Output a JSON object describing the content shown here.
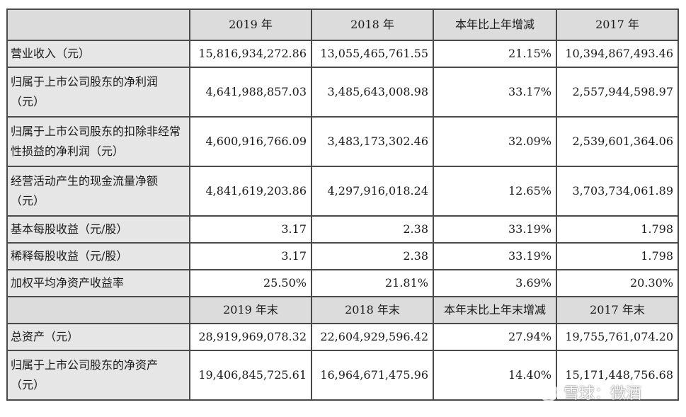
{
  "header1": [
    "2019 年",
    "2018 年",
    "本年比上年增减",
    "2017 年"
  ],
  "rows1": [
    {
      "label": "营业收入（元）",
      "values": [
        "15,816,934,272.86",
        "13,055,465,761.55",
        "21.15%",
        "10,394,867,493.46"
      ]
    },
    {
      "label": "归属于上市公司股东的净利润（元）",
      "values": [
        "4,641,988,857.03",
        "3,485,643,008.98",
        "33.17%",
        "2,557,944,598.97"
      ]
    },
    {
      "label": "归属于上市公司股东的扣除非经常性损益的净利润（元）",
      "values": [
        "4,600,916,766.09",
        "3,483,173,302.46",
        "32.09%",
        "2,539,601,364.06"
      ]
    },
    {
      "label": "经营活动产生的现金流量净额（元）",
      "values": [
        "4,841,619,203.86",
        "4,297,916,018.24",
        "12.65%",
        "3,703,734,061.89"
      ]
    },
    {
      "label": "基本每股收益（元/股）",
      "values": [
        "3.17",
        "2.38",
        "33.19%",
        "1.798"
      ]
    },
    {
      "label": "稀释每股收益（元/股）",
      "values": [
        "3.17",
        "2.38",
        "33.19%",
        "1.798"
      ]
    },
    {
      "label": "加权平均净资产收益率",
      "values": [
        "25.50%",
        "21.81%",
        "3.69%",
        "20.30%"
      ]
    }
  ],
  "header2": [
    "2019 年末",
    "2018 年末",
    "本年末比上年末增减",
    "2017 年末"
  ],
  "rows2": [
    {
      "label": "总资产（元）",
      "values": [
        "28,919,969,078.32",
        "22,604,929,596.42",
        "27.94%",
        "19,755,761,074.20"
      ]
    },
    {
      "label": "归属于上市公司股东的净资产（元）",
      "values": [
        "19,406,845,725.61",
        "16,964,671,475.96",
        "14.40%",
        "15,171,448,756.68"
      ]
    }
  ],
  "watermark": "雪球：微酒"
}
